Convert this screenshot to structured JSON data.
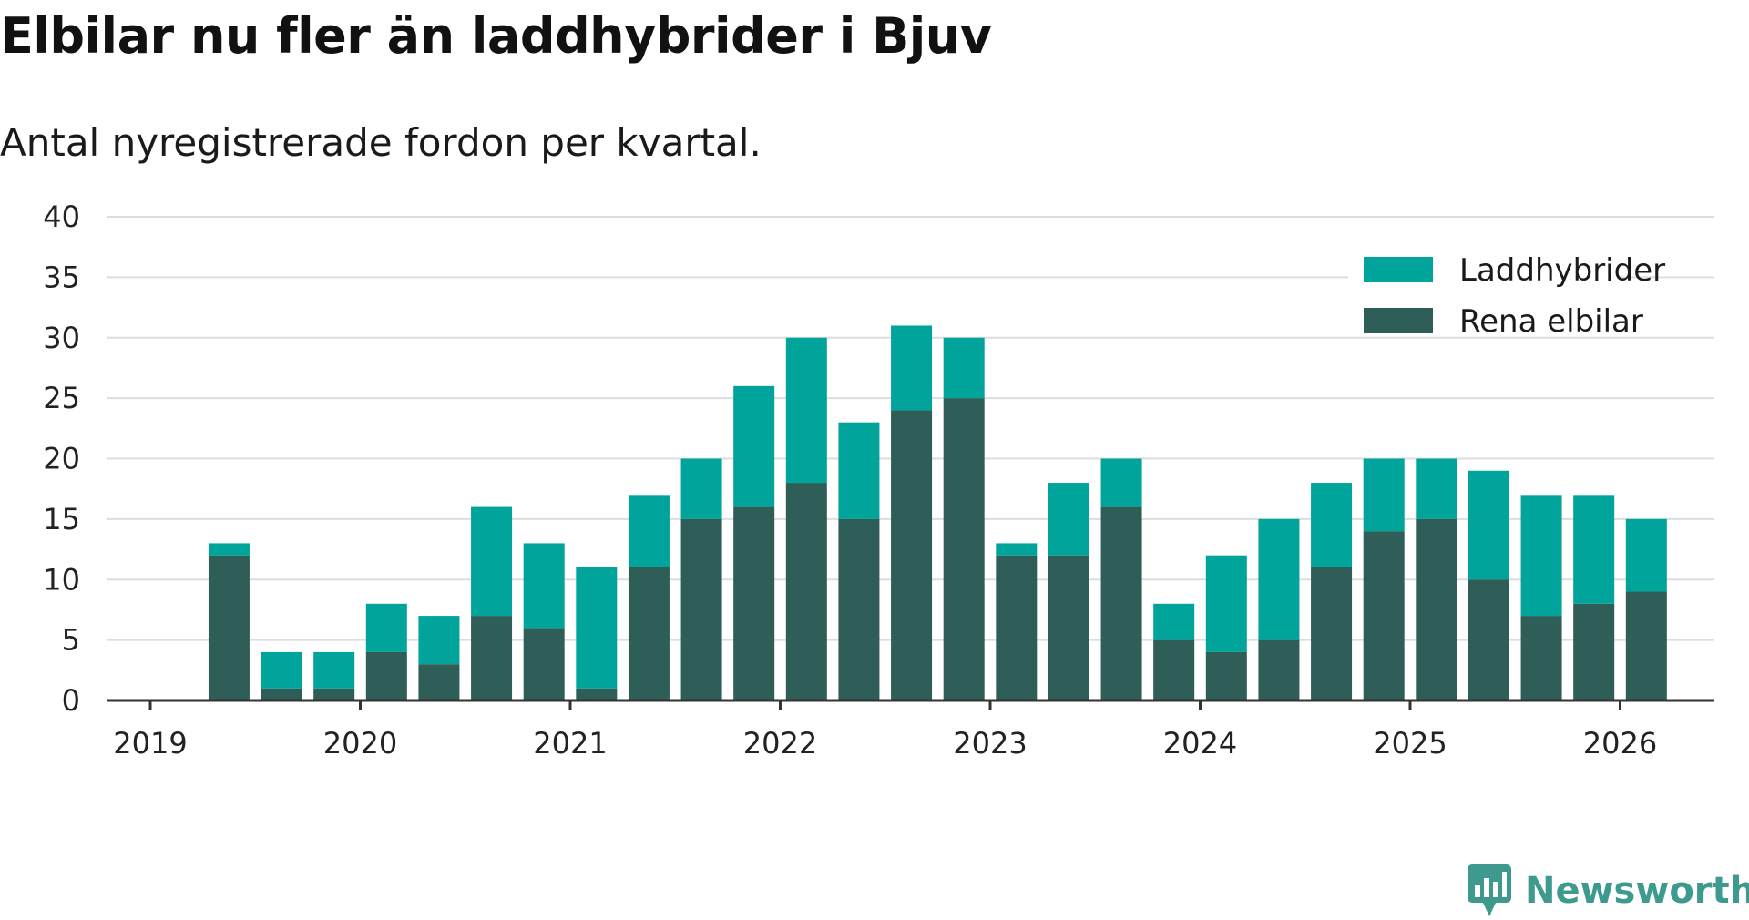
{
  "title": "Elbilar nu fler än laddhybrider i Bjuv",
  "subtitle": "Antal nyregistrerade fordon per kvartal.",
  "brand": "Newsworthy",
  "colors": {
    "laddhybrider": "#00a49a",
    "rena": "#2f5e58",
    "grid": "#dddddd",
    "axis": "#333333"
  },
  "chart_data": {
    "type": "bar",
    "stacked": true,
    "title": "Elbilar nu fler än laddhybrider i Bjuv",
    "subtitle": "Antal nyregistrerade fordon per kvartal.",
    "xlabel": "",
    "ylabel": "",
    "ylim": [
      0,
      40
    ],
    "yticks": [
      0,
      5,
      10,
      15,
      20,
      25,
      30,
      35,
      40
    ],
    "xticks": [
      "2019",
      "2020",
      "2021",
      "2022",
      "2023",
      "2024",
      "2025",
      "2026"
    ],
    "legend_position": "top-right",
    "categories": [
      "2019 Q2",
      "2019 Q3",
      "2019 Q4",
      "2020 Q1",
      "2020 Q2",
      "2020 Q3",
      "2020 Q4",
      "2021 Q1",
      "2021 Q2",
      "2021 Q3",
      "2021 Q4",
      "2022 Q1",
      "2022 Q2",
      "2022 Q3",
      "2022 Q4",
      "2023 Q1",
      "2023 Q2",
      "2023 Q3",
      "2023 Q4",
      "2024 Q1",
      "2024 Q2",
      "2024 Q3",
      "2024 Q4",
      "2025 Q1",
      "2025 Q2",
      "2025 Q3",
      "2025 Q4",
      "2026 Q1"
    ],
    "series": [
      {
        "name": "Rena elbilar",
        "values": [
          12,
          1,
          1,
          4,
          3,
          7,
          6,
          1,
          11,
          15,
          16,
          18,
          15,
          24,
          25,
          12,
          12,
          16,
          5,
          4,
          5,
          11,
          14,
          15,
          10,
          7,
          8,
          9
        ]
      },
      {
        "name": "Laddhybrider",
        "values": [
          1,
          3,
          3,
          4,
          4,
          9,
          7,
          10,
          6,
          5,
          10,
          12,
          8,
          7,
          5,
          1,
          6,
          4,
          3,
          8,
          10,
          7,
          6,
          5,
          9,
          10,
          9,
          6
        ]
      }
    ]
  }
}
